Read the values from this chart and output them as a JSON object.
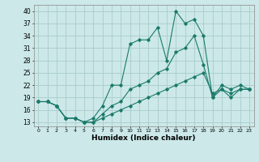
{
  "xlabel": "Humidex (Indice chaleur)",
  "bg_color": "#cce8e8",
  "grid_color": "#aacccc",
  "line_color": "#1a7a6a",
  "x_ticks": [
    0,
    1,
    2,
    3,
    4,
    5,
    6,
    7,
    8,
    9,
    10,
    11,
    12,
    13,
    14,
    15,
    16,
    17,
    18,
    19,
    20,
    21,
    22,
    23
  ],
  "y_ticks": [
    13,
    16,
    19,
    22,
    25,
    28,
    31,
    34,
    37,
    40
  ],
  "xlim": [
    -0.5,
    23.5
  ],
  "ylim": [
    12.0,
    41.5
  ],
  "series": [
    {
      "x": [
        0,
        1,
        2,
        3,
        4,
        5,
        6,
        7,
        8,
        9,
        10,
        11,
        12,
        13,
        14,
        15,
        16,
        17,
        18,
        19,
        20,
        21,
        22,
        23
      ],
      "y": [
        18,
        18,
        17,
        14,
        14,
        13,
        14,
        17,
        22,
        22,
        32,
        33,
        33,
        36,
        28,
        40,
        37,
        38,
        34,
        19,
        22,
        21,
        22,
        21
      ]
    },
    {
      "x": [
        0,
        1,
        2,
        3,
        4,
        5,
        6,
        7,
        8,
        9,
        10,
        11,
        12,
        13,
        14,
        15,
        16,
        17,
        18,
        19,
        20,
        21,
        22,
        23
      ],
      "y": [
        18,
        18,
        17,
        14,
        14,
        13,
        13,
        15,
        17,
        18,
        21,
        22,
        23,
        25,
        26,
        30,
        31,
        34,
        27,
        19,
        21,
        19,
        21,
        21
      ]
    },
    {
      "x": [
        0,
        1,
        2,
        3,
        4,
        5,
        6,
        7,
        8,
        9,
        10,
        11,
        12,
        13,
        14,
        15,
        16,
        17,
        18,
        19,
        20,
        21,
        22,
        23
      ],
      "y": [
        18,
        18,
        17,
        14,
        14,
        13,
        13,
        14,
        15,
        16,
        17,
        18,
        19,
        20,
        21,
        22,
        23,
        24,
        25,
        20,
        21,
        20,
        21,
        21
      ]
    }
  ]
}
